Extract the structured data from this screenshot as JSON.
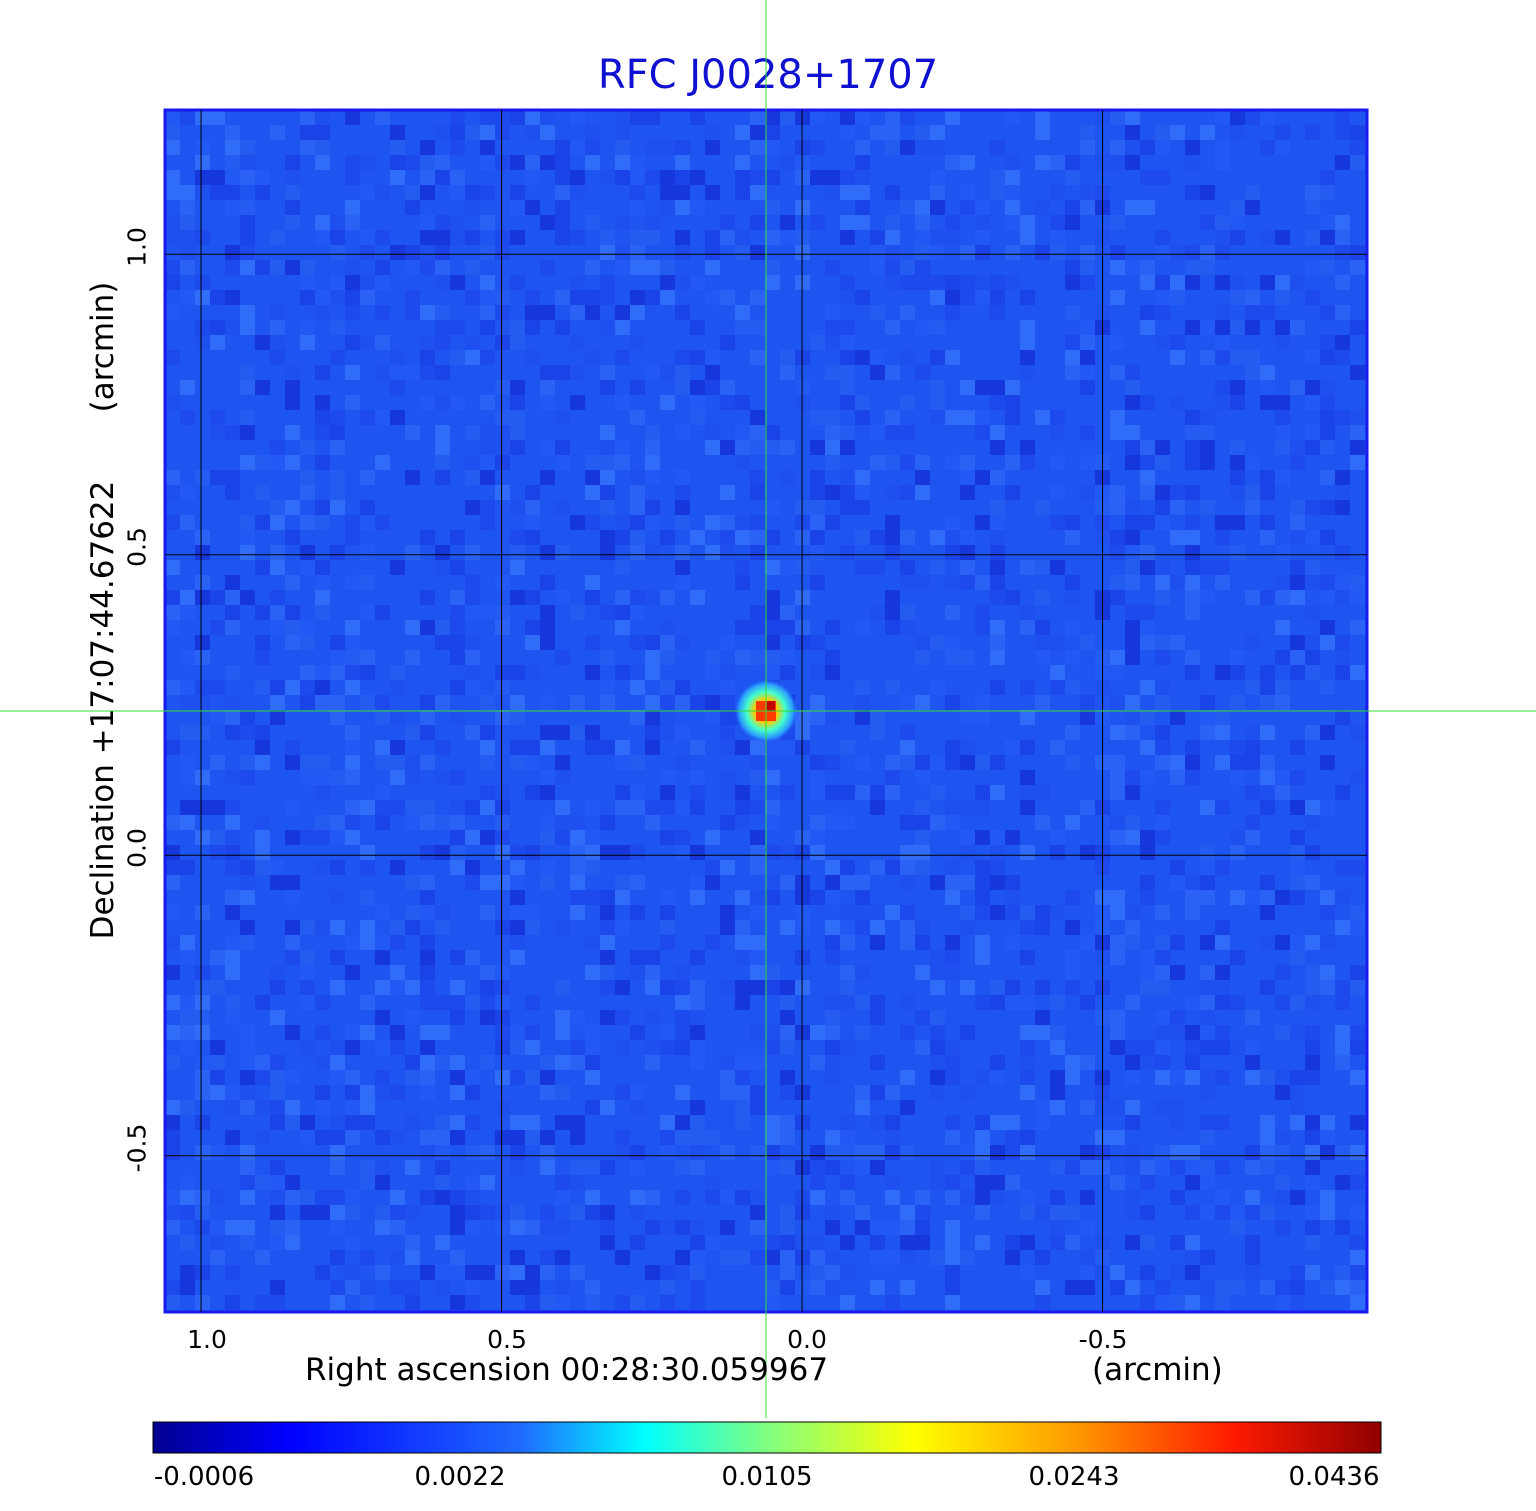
{
  "chart_data": {
    "type": "heatmap",
    "title": "RFC J0028+1707",
    "xlabel": "Right ascension  00:28:30.059967",
    "xunit": "(arcmin)",
    "ylabel": "Declination  +17:07:44.67622",
    "yunit": "(arcmin)",
    "xlim": [
      1.06,
      -0.94
    ],
    "ylim": [
      -0.76,
      1.24
    ],
    "x_ticks": [
      "1.0",
      "0.5",
      "0.0",
      "-0.5"
    ],
    "x_tick_values": [
      1.0,
      0.5,
      0.0,
      -0.5
    ],
    "y_ticks": [
      "1.0",
      "0.5",
      "0.0",
      "-0.5"
    ],
    "y_tick_values": [
      1.0,
      0.5,
      0.0,
      -0.5
    ],
    "grid": true,
    "crosshair": {
      "x": 0.06,
      "y": 0.24,
      "color": "#33dd33"
    },
    "source": {
      "x": 0.06,
      "y": 0.24,
      "peak": 0.0436
    },
    "colorbar": {
      "ticks": [
        "-0.0006",
        "0.0022",
        "0.0105",
        "0.0243",
        "0.0436"
      ],
      "colormap": "jet"
    }
  },
  "colors": {
    "title": "#1010d0",
    "frame": "#1a1aee",
    "background": "#1e55f0",
    "grid": "#000000",
    "crosshair": "#33dd33"
  }
}
